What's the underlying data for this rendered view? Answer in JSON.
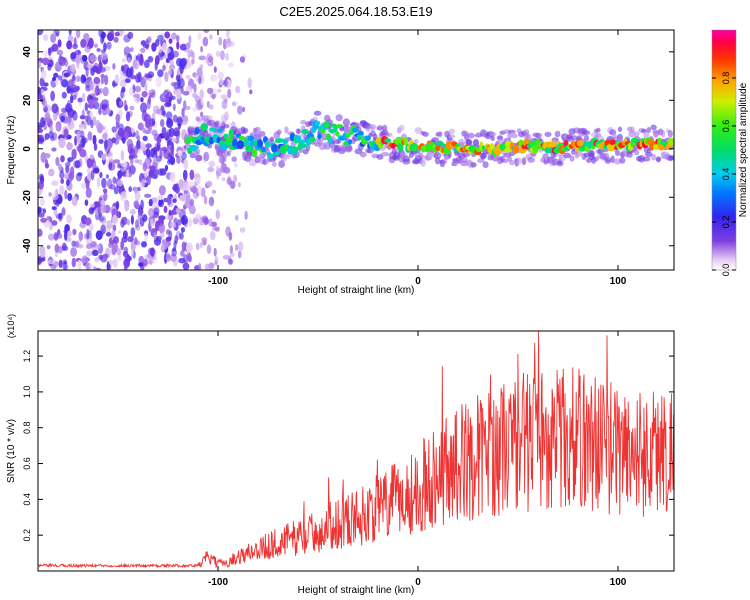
{
  "title": "C2E5.2025.064.18.53.E19",
  "chart_data": [
    {
      "type": "heatmap",
      "title": "C2E5.2025.064.18.53.E19",
      "xlabel": "Height of straight line (km)",
      "ylabel": "Frequency (Hz)",
      "xlim": [
        -190,
        128
      ],
      "ylim": [
        -50,
        49
      ],
      "x_ticks": [
        "-100",
        "0",
        "100"
      ],
      "y_ticks": [
        "-40",
        "-20",
        "0",
        "20",
        "40"
      ],
      "colorbar": {
        "label": "Normalized spectral amplitude",
        "range": [
          0.0,
          1.0
        ],
        "ticks": [
          "0.0",
          "0.2",
          "0.4",
          "0.6",
          "0.8"
        ]
      },
      "noise_region_x": [
        -190,
        -90
      ],
      "signal_onset_x": -115,
      "ridge": {
        "x": [
          -115,
          -110,
          -100,
          -90,
          -80,
          -70,
          -60,
          -50,
          -40,
          -30,
          -20,
          -10,
          0,
          10,
          20,
          30,
          40,
          50,
          60,
          70,
          80,
          90,
          100,
          110,
          120,
          128
        ],
        "y": [
          1,
          6,
          5,
          2,
          1,
          0,
          3,
          8,
          6,
          5,
          3,
          2,
          1,
          1,
          0.5,
          0,
          0,
          1,
          1,
          0.5,
          1,
          2,
          1,
          2,
          2,
          2
        ]
      },
      "grid": false
    },
    {
      "type": "line",
      "xlabel": "Height of straight line (km)",
      "ylabel": "SNR (10 * v/v)",
      "y_multiplier": "(x10⁴)",
      "xlim": [
        -190,
        128
      ],
      "ylim": [
        0,
        1.34
      ],
      "x_ticks": [
        "-100",
        "0",
        "100"
      ],
      "y_ticks": [
        "0.2",
        "0.4",
        "0.6",
        "0.8",
        "1.0",
        "1.2"
      ],
      "series": [
        {
          "color": "#ee3333",
          "x": [
            -190,
            -150,
            -110,
            -105,
            -100,
            -95,
            -90,
            -80,
            -70,
            -60,
            -50,
            -40,
            -30,
            -20,
            -10,
            0,
            10,
            20,
            30,
            40,
            50,
            60,
            70,
            80,
            90,
            100,
            110,
            120,
            128
          ],
          "y": [
            0.03,
            0.03,
            0.03,
            0.08,
            0.04,
            0.05,
            0.08,
            0.12,
            0.16,
            0.19,
            0.22,
            0.27,
            0.3,
            0.35,
            0.4,
            0.45,
            0.55,
            0.6,
            0.64,
            0.68,
            0.72,
            0.74,
            0.74,
            0.74,
            0.72,
            0.68,
            0.66,
            0.67,
            0.68
          ]
        }
      ]
    }
  ]
}
